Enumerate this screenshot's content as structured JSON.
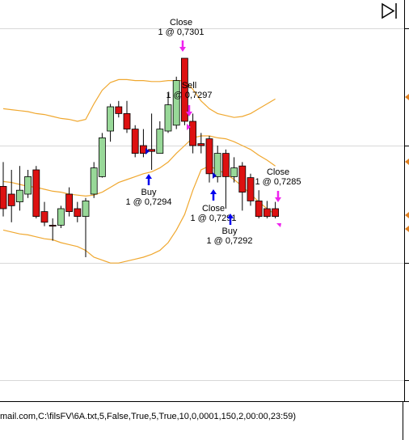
{
  "chart_data": {
    "type": "candlestick",
    "ylim": [
      0.7266,
      0.7307
    ],
    "open": [
      0.72878,
      0.7287,
      0.72862,
      0.7287,
      0.72895,
      0.72852,
      0.72838,
      0.72838,
      0.7287,
      0.72855,
      0.72847,
      0.7287,
      0.72888,
      0.72935,
      0.7296,
      0.72953,
      0.72937,
      0.7292,
      0.72916,
      0.72912,
      0.72935,
      0.72941,
      0.7301,
      0.72945,
      0.72922,
      0.72927,
      0.72888,
      0.72912,
      0.72888,
      0.72899,
      0.72887,
      0.72863,
      0.72855,
      0.72855
    ],
    "high": [
      0.72903,
      0.72895,
      0.72899,
      0.72895,
      0.72899,
      0.72862,
      0.72845,
      0.72858,
      0.72877,
      0.72862,
      0.72866,
      0.72903,
      0.72933,
      0.72963,
      0.72966,
      0.72966,
      0.72941,
      0.72937,
      0.72953,
      0.72945,
      0.72974,
      0.72991,
      0.7301,
      0.72953,
      0.72933,
      0.7293,
      0.7292,
      0.72916,
      0.72908,
      0.72903,
      0.72891,
      0.72874,
      0.72863,
      0.72862
    ],
    "low": [
      0.72847,
      0.72841,
      0.72853,
      0.72866,
      0.72845,
      0.72837,
      0.72822,
      0.72835,
      0.72847,
      0.72841,
      0.72805,
      0.72866,
      0.72887,
      0.72924,
      0.72949,
      0.72933,
      0.72908,
      0.72908,
      0.72895,
      0.72912,
      0.72933,
      0.72937,
      0.72941,
      0.72912,
      0.72912,
      0.72882,
      0.72882,
      0.72855,
      0.72882,
      0.72853,
      0.72858,
      0.72845,
      0.72845,
      0.72845
    ],
    "close": [
      0.72855,
      0.72858,
      0.72874,
      0.72888,
      0.72847,
      0.72841,
      0.72837,
      0.72855,
      0.72852,
      0.72847,
      0.72863,
      0.72897,
      0.72928,
      0.7296,
      0.72953,
      0.72937,
      0.72912,
      0.72912,
      0.72914,
      0.72937,
      0.72962,
      0.72987,
      0.72945,
      0.7292,
      0.7292,
      0.72891,
      0.72912,
      0.72888,
      0.72897,
      0.72872,
      0.72863,
      0.72847,
      0.72847,
      0.72847
    ],
    "up_color": "#98d898",
    "down_color": "#dd1111",
    "bands": {
      "color": "#f0a830",
      "upper": [
        0.72958,
        0.72957,
        0.72956,
        0.72955,
        0.72953,
        0.72952,
        0.7295,
        0.72948,
        0.72947,
        0.72945,
        0.72947,
        0.72963,
        0.72977,
        0.72985,
        0.72988,
        0.72988,
        0.72987,
        0.72987,
        0.72986,
        0.72986,
        0.72987,
        0.72987,
        0.72987,
        0.72978,
        0.72966,
        0.72958,
        0.72953,
        0.72951,
        0.72949,
        0.7295,
        0.72953,
        0.72958,
        0.72963,
        0.72968
      ],
      "middle": [
        0.72883,
        0.72882,
        0.7288,
        0.72878,
        0.72877,
        0.72875,
        0.72873,
        0.72872,
        0.7287,
        0.72869,
        0.72868,
        0.72869,
        0.72872,
        0.72877,
        0.72882,
        0.72885,
        0.72888,
        0.72891,
        0.72893,
        0.72897,
        0.72903,
        0.72912,
        0.7292,
        0.72928,
        0.7293,
        0.7293,
        0.72928,
        0.72927,
        0.72924,
        0.7292,
        0.72916,
        0.7291,
        0.72905,
        0.72899
      ],
      "lower": [
        0.72833,
        0.72831,
        0.72829,
        0.72828,
        0.72826,
        0.72824,
        0.72823,
        0.7282,
        0.72818,
        0.72816,
        0.72812,
        0.72805,
        0.72802,
        0.72799,
        0.72799,
        0.72801,
        0.72803,
        0.72805,
        0.72808,
        0.72812,
        0.7282,
        0.72833,
        0.72849,
        0.72874,
        0.72895,
        0.72899,
        0.72895,
        0.72891,
        0.72885,
        0.72878,
        0.7287,
        0.72862,
        0.72855,
        0.72849
      ]
    },
    "annotations": [
      {
        "label": "Close",
        "text": "1 @ 0,7301"
      },
      {
        "label": "Sell",
        "text": "1 @ 0,7297"
      },
      {
        "label": "Buy",
        "text": "1 @ 0,7294"
      },
      {
        "label": "Close",
        "text": "1 @ 0,7291"
      },
      {
        "label": "Buy",
        "text": "1 @ 0,7292"
      },
      {
        "label": "Close",
        "text": "1 @ 0,7285"
      }
    ],
    "footer": "mail.com,C:\\filsFV\\6A.txt,5,False,True,5,True,10,0,0001,150,2,00:00,23:59)"
  }
}
